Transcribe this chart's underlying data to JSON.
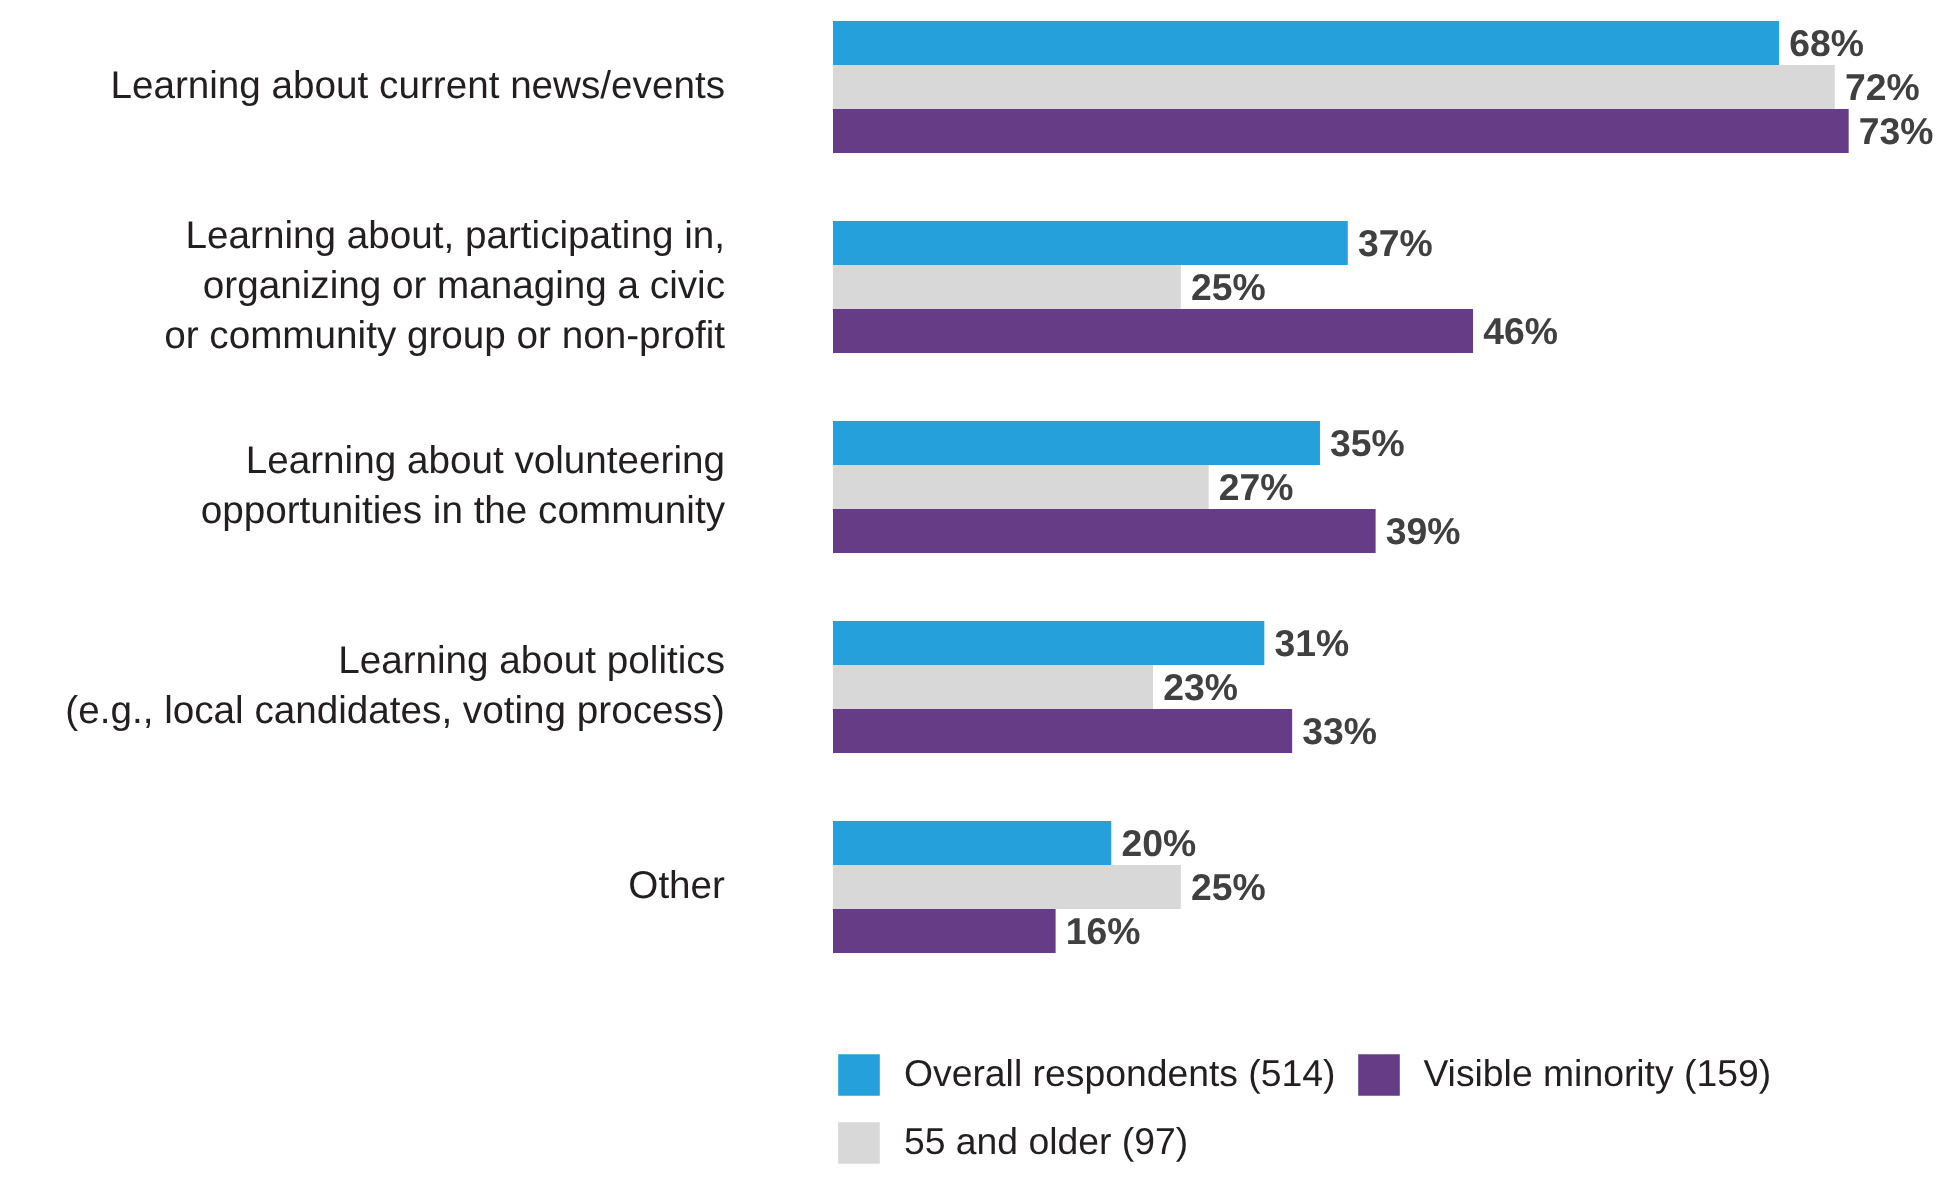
{
  "chart_data": {
    "type": "bar",
    "orientation": "horizontal",
    "categories": [
      "Learning about current news/events",
      "Learning about, participating in,\norganizing or managing a civic\nor community group or non-profit",
      "Learning about volunteering\nopportunities in the community",
      "Learning about politics\n(e.g., local candidates, voting process)",
      "Other"
    ],
    "series": [
      {
        "name": "Overall respondents (514)",
        "color": "#26a0da",
        "values": [
          68,
          37,
          35,
          31,
          20
        ],
        "value_labels": [
          "68%",
          "37%",
          "35%",
          "31%",
          "20%"
        ]
      },
      {
        "name": "55 and older (97)",
        "color": "#d9d8d8",
        "values": [
          72,
          25,
          27,
          23,
          25
        ],
        "value_labels": [
          "72%",
          "25%",
          "27%",
          "23%",
          "25%"
        ]
      },
      {
        "name": "Visible minority (159)",
        "color": "#673c86",
        "values": [
          73,
          46,
          39,
          33,
          16
        ],
        "value_labels": [
          "73%",
          "46%",
          "39%",
          "33%",
          "16%"
        ]
      }
    ],
    "legend": "bottom",
    "grid": false
  }
}
